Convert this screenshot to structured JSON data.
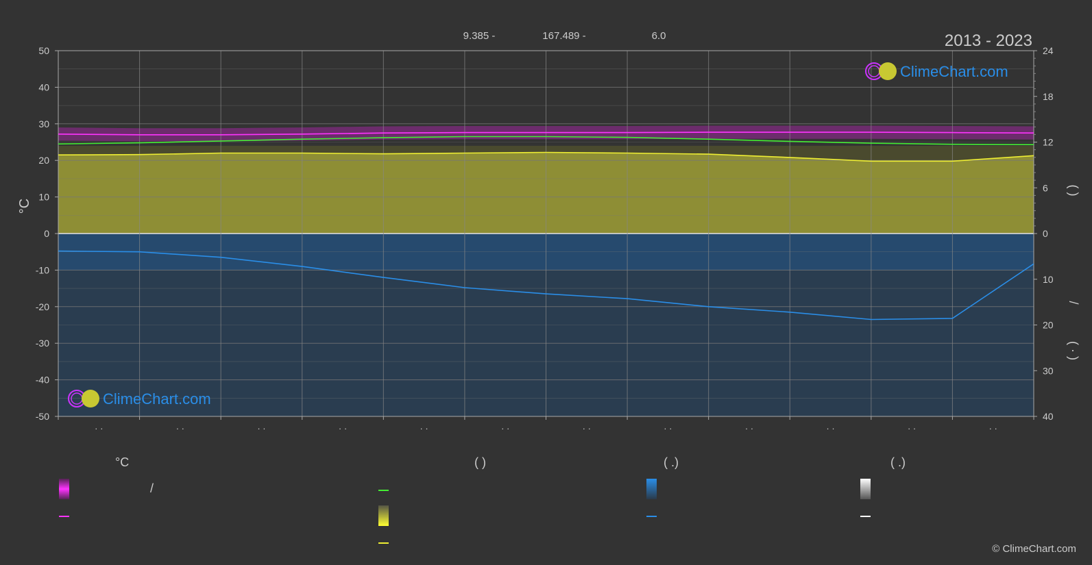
{
  "header": {
    "coords_lat": "9.385 -",
    "coords_lon": "167.489 -",
    "elevation": "6.0",
    "years": "2013 - 2023"
  },
  "brand": {
    "name": "ClimeChart.com",
    "copyright": "© ClimeChart.com"
  },
  "axes": {
    "left_label": "°C",
    "left_ticks": [
      "50",
      "40",
      "30",
      "20",
      "10",
      "0",
      "-10",
      "-20",
      "-30",
      "-40",
      "-50"
    ],
    "right_top_ticks": [
      "24",
      "18",
      "12",
      "6",
      "0"
    ],
    "right_bottom_ticks": [
      "10",
      "20",
      "30",
      "40"
    ],
    "right_label_top": "(   )",
    "right_label_mid": "/",
    "right_label_bottom": "( · )",
    "month_ticks": [
      "· ·",
      "· ·",
      "· ·",
      "· ·",
      "· ·",
      "· ·",
      "· ·",
      "· ·",
      "· ·",
      "· ·",
      "· ·",
      "· ·"
    ]
  },
  "legend": {
    "col1_title": "°C",
    "col1_sep": "/",
    "col2_title": "(          )",
    "col3_title": "(   .)",
    "col4_title": "(   .)"
  },
  "colors": {
    "background": "#333333",
    "max_temp": "#ff33ff",
    "daylight": "#44ee33",
    "sunshine": "#eeee33",
    "precip": "#2a8ee8",
    "snow": "#ffffff",
    "sun_band": "#8e8e35",
    "precip_band": "#1e4a73"
  },
  "chart_data": {
    "type": "line",
    "title": "2013 - 2023",
    "ylabel": "°C",
    "ylim": [
      -50,
      50
    ],
    "y2lim_top": [
      0,
      24
    ],
    "y2lim_bottom": [
      0,
      40
    ],
    "grid": true,
    "x": [
      0,
      1,
      2,
      3,
      4,
      5,
      6,
      7,
      8,
      9,
      10,
      11,
      12
    ],
    "series": [
      {
        "values": [
          27.2,
          27.0,
          27.0,
          27.2,
          27.5,
          27.6,
          27.6,
          27.6,
          27.7,
          27.7,
          27.7,
          27.6,
          27.5
        ]
      },
      {
        "values": [
          24.5,
          24.8,
          25.3,
          25.8,
          26.2,
          26.5,
          26.5,
          26.3,
          25.8,
          25.2,
          24.7,
          24.4,
          24.3
        ]
      },
      {
        "values": [
          21.5,
          21.6,
          22.0,
          22.0,
          21.8,
          22.0,
          22.2,
          22.0,
          21.7,
          20.8,
          19.8,
          19.8,
          21.3
        ]
      },
      {
        "values": [
          -4.8,
          -5.0,
          -6.5,
          -9.0,
          -12.0,
          -14.8,
          -16.5,
          -17.8,
          -20.0,
          -21.5,
          -23.5,
          -23.2,
          -8.3
        ]
      }
    ]
  }
}
